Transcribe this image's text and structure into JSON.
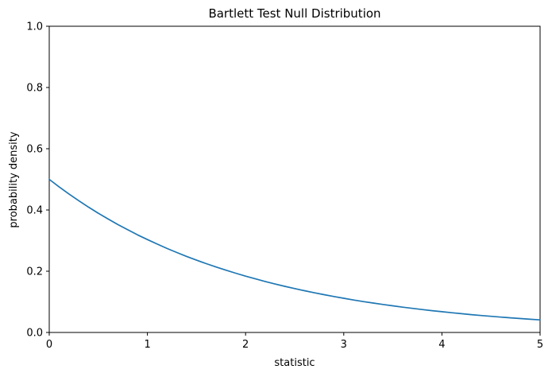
{
  "chart_data": {
    "type": "line",
    "title": "Bartlett Test Null Distribution",
    "xlabel": "statistic",
    "ylabel": "probability density",
    "xlim": [
      0,
      5
    ],
    "ylim": [
      0,
      1
    ],
    "grid": false,
    "legend": false,
    "line_color": "#1f77b4",
    "line_width": 1.7,
    "axis_color": "#000000",
    "x_ticks": {
      "values": [
        0,
        1,
        2,
        3,
        4,
        5
      ],
      "labels": [
        "0",
        "1",
        "2",
        "3",
        "4",
        "5"
      ]
    },
    "y_ticks": {
      "values": [
        0.0,
        0.2,
        0.4,
        0.6,
        0.8,
        1.0
      ],
      "labels": [
        "0.0",
        "0.2",
        "0.4",
        "0.6",
        "0.8",
        "1.0"
      ]
    },
    "x": [
      0.0,
      0.1,
      0.2,
      0.3,
      0.4,
      0.5,
      0.6,
      0.7,
      0.8,
      0.9,
      1.0,
      1.1,
      1.2,
      1.3,
      1.4,
      1.5,
      1.6,
      1.7,
      1.8,
      1.9,
      2.0,
      2.1,
      2.2,
      2.3,
      2.4,
      2.5,
      2.6,
      2.7,
      2.8,
      2.9,
      3.0,
      3.1,
      3.2,
      3.3,
      3.4,
      3.5,
      3.6,
      3.7,
      3.8,
      3.9,
      4.0,
      4.1,
      4.2,
      4.3,
      4.4,
      4.5,
      4.6,
      4.7,
      4.8,
      4.9,
      5.0
    ],
    "y": [
      0.5,
      0.4756,
      0.4524,
      0.4304,
      0.4094,
      0.3894,
      0.3704,
      0.3523,
      0.3352,
      0.3188,
      0.3033,
      0.2885,
      0.2744,
      0.261,
      0.2483,
      0.2362,
      0.2247,
      0.2137,
      0.2033,
      0.1934,
      0.1839,
      0.175,
      0.1664,
      0.1583,
      0.1506,
      0.1433,
      0.1363,
      0.1296,
      0.1233,
      0.1173,
      0.1116,
      0.1061,
      0.1009,
      0.096,
      0.0913,
      0.0869,
      0.0826,
      0.0786,
      0.0748,
      0.0711,
      0.0677,
      0.0644,
      0.0612,
      0.0582,
      0.0554,
      0.0527,
      0.0501,
      0.0477,
      0.0454,
      0.0431,
      0.041
    ]
  }
}
